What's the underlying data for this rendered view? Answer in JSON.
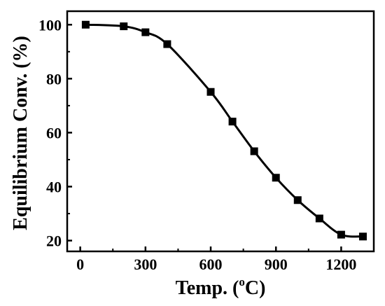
{
  "chart_data": {
    "type": "line",
    "xlabel_main": "Temp. (",
    "xlabel_sup": "o",
    "xlabel_tail": "C)",
    "ylabel": "Equilibrium Conv. (%)",
    "xlim": [
      -60,
      1350
    ],
    "ylim": [
      16,
      105
    ],
    "xticks": [
      0,
      300,
      600,
      900,
      1200
    ],
    "yticks": [
      20,
      40,
      60,
      80,
      100
    ],
    "grid": false,
    "marker": "square",
    "series": [
      {
        "x": [
          25,
          200,
          300,
          400,
          600,
          700,
          800,
          900,
          1000,
          1100,
          1200,
          1300
        ],
        "values": [
          100,
          99.4,
          97.2,
          92.8,
          75.1,
          64.1,
          53.1,
          43.3,
          35.0,
          28.2,
          22.2,
          21.5
        ]
      }
    ],
    "color": "#000000"
  }
}
